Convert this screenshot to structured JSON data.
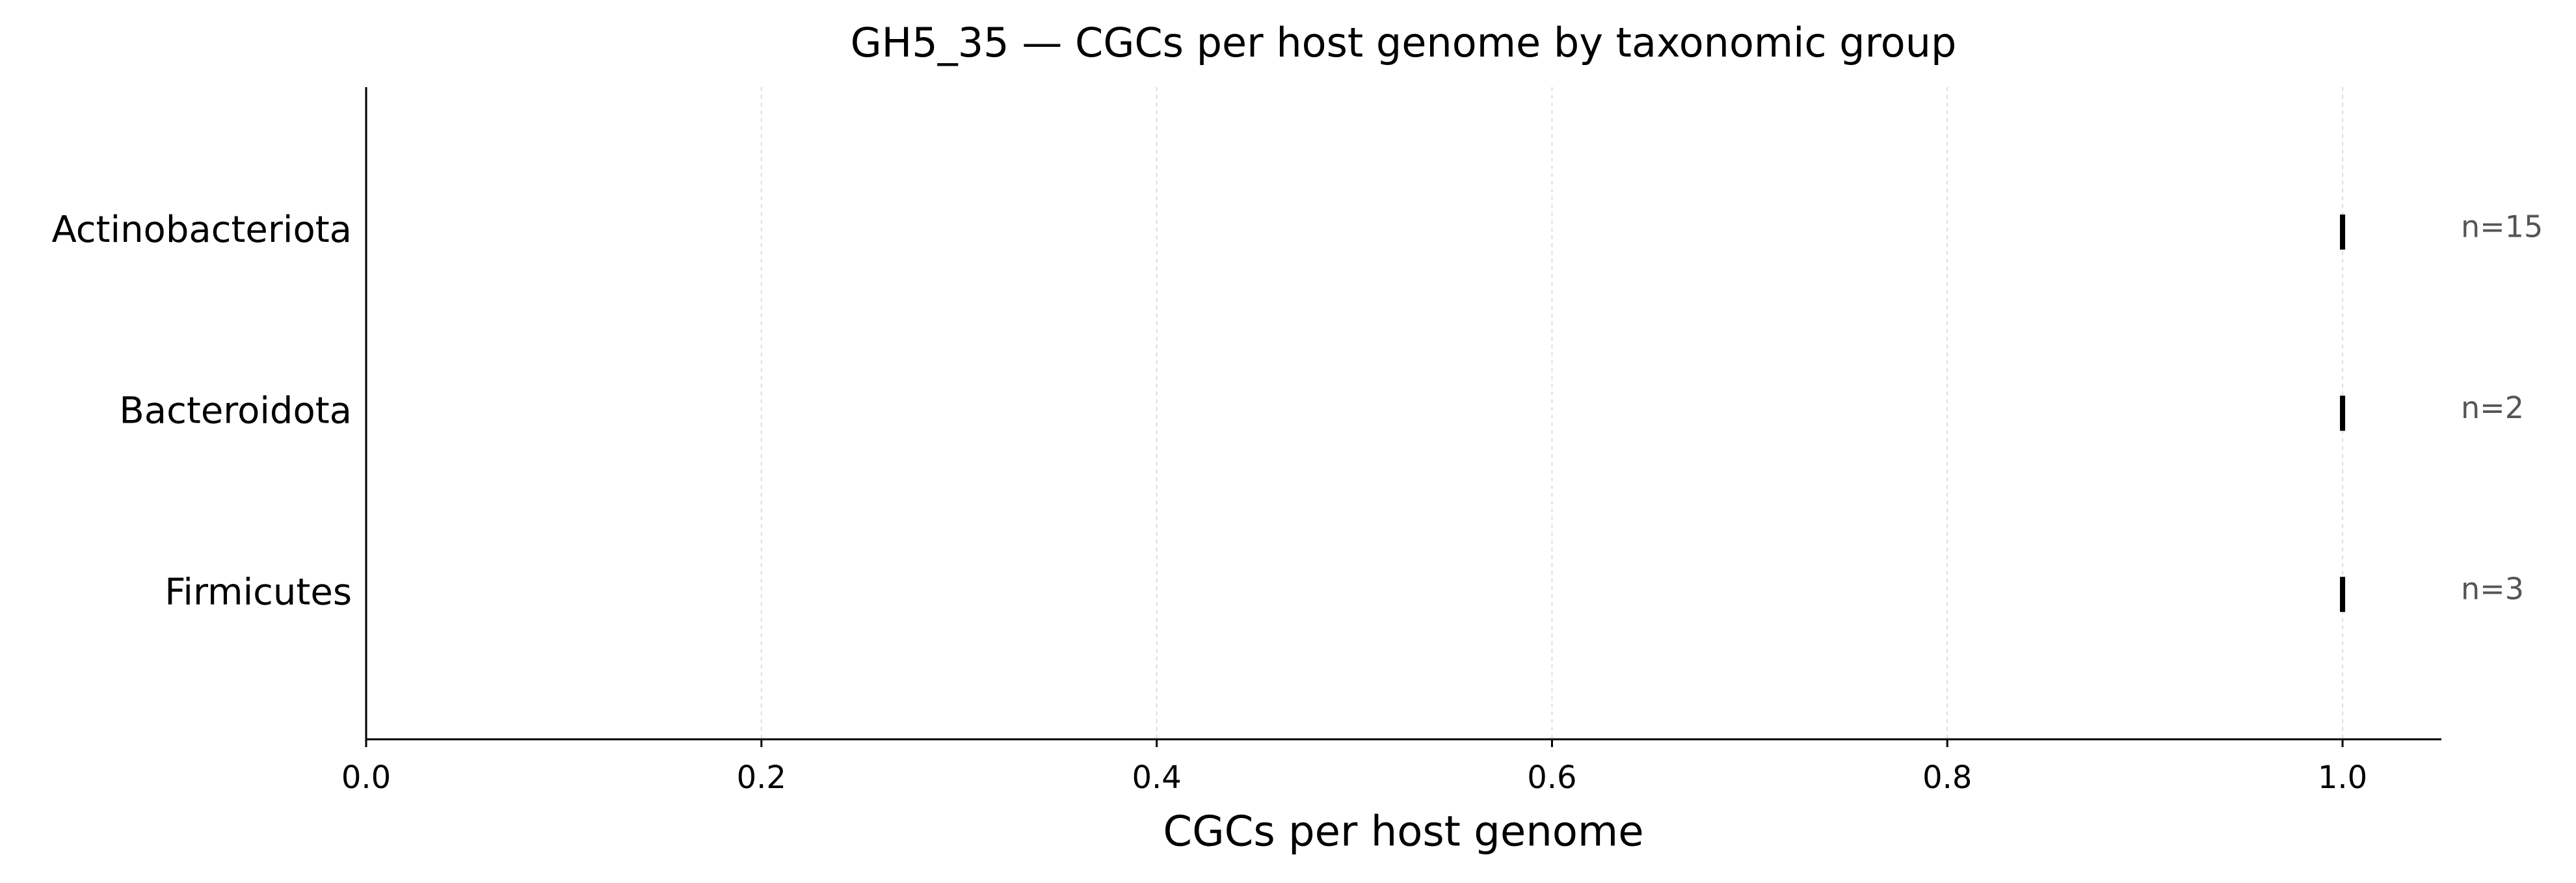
{
  "chart_data": {
    "type": "box",
    "title": "GH5_35 — CGCs per host genome by taxonomic group",
    "x_label": "CGCs per host genome",
    "categories": [
      "Actinobacteriota",
      "Bacteroidota",
      "Firmicutes"
    ],
    "values": [
      1,
      1,
      1
    ],
    "annotations": [
      "n=15",
      "n=2",
      "n=3"
    ],
    "color": "#000000",
    "xlim": [
      0,
      1.05
    ],
    "xticks": [
      {
        "value": 0,
        "label": "0.0"
      },
      0.2,
      0.4,
      0.6,
      0.8,
      {
        "value": 1,
        "label": "1.0"
      }
    ],
    "grid": true
  }
}
